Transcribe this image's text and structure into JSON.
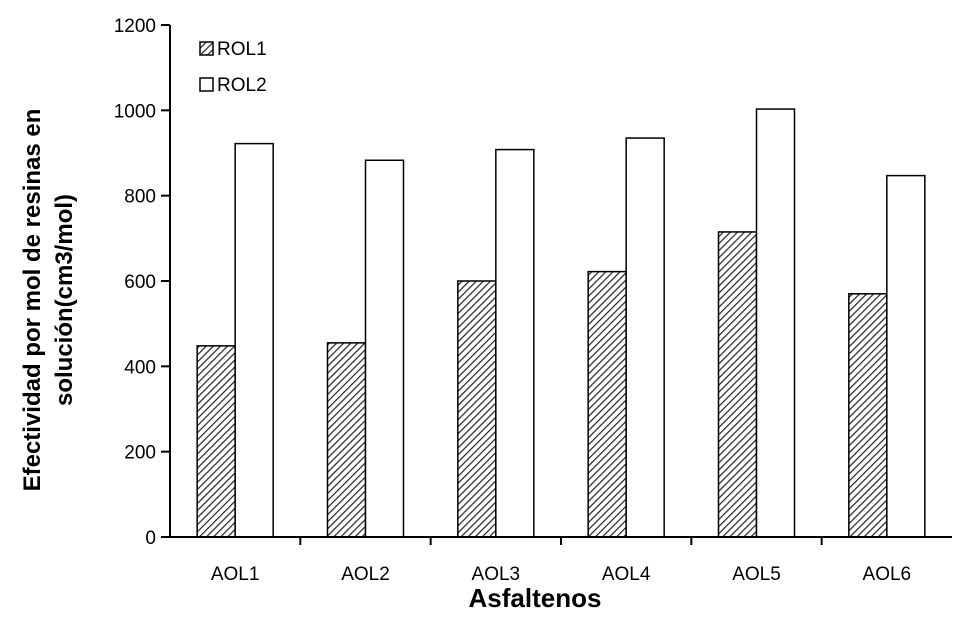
{
  "chart_data": {
    "type": "bar",
    "title": "",
    "categories": [
      "AOL1",
      "AOL2",
      "AOL3",
      "AOL4",
      "AOL5",
      "AOL6"
    ],
    "series": [
      {
        "name": "ROL1",
        "values": [
          448,
          455,
          600,
          622,
          715,
          570
        ],
        "pattern": "diagonal-hatch"
      },
      {
        "name": "ROL2",
        "values": [
          922,
          883,
          908,
          935,
          1003,
          847
        ],
        "pattern": "white"
      }
    ],
    "xlabel": "Asfaltenos",
    "ylabel_lines": [
      "Efectividad por mol de resinas en",
      "solución(cm3/mol)"
    ],
    "ylim": [
      0,
      1200
    ],
    "yticks": [
      0,
      200,
      400,
      600,
      800,
      1000,
      1200
    ],
    "grid": false,
    "legend_position": "top-left"
  }
}
